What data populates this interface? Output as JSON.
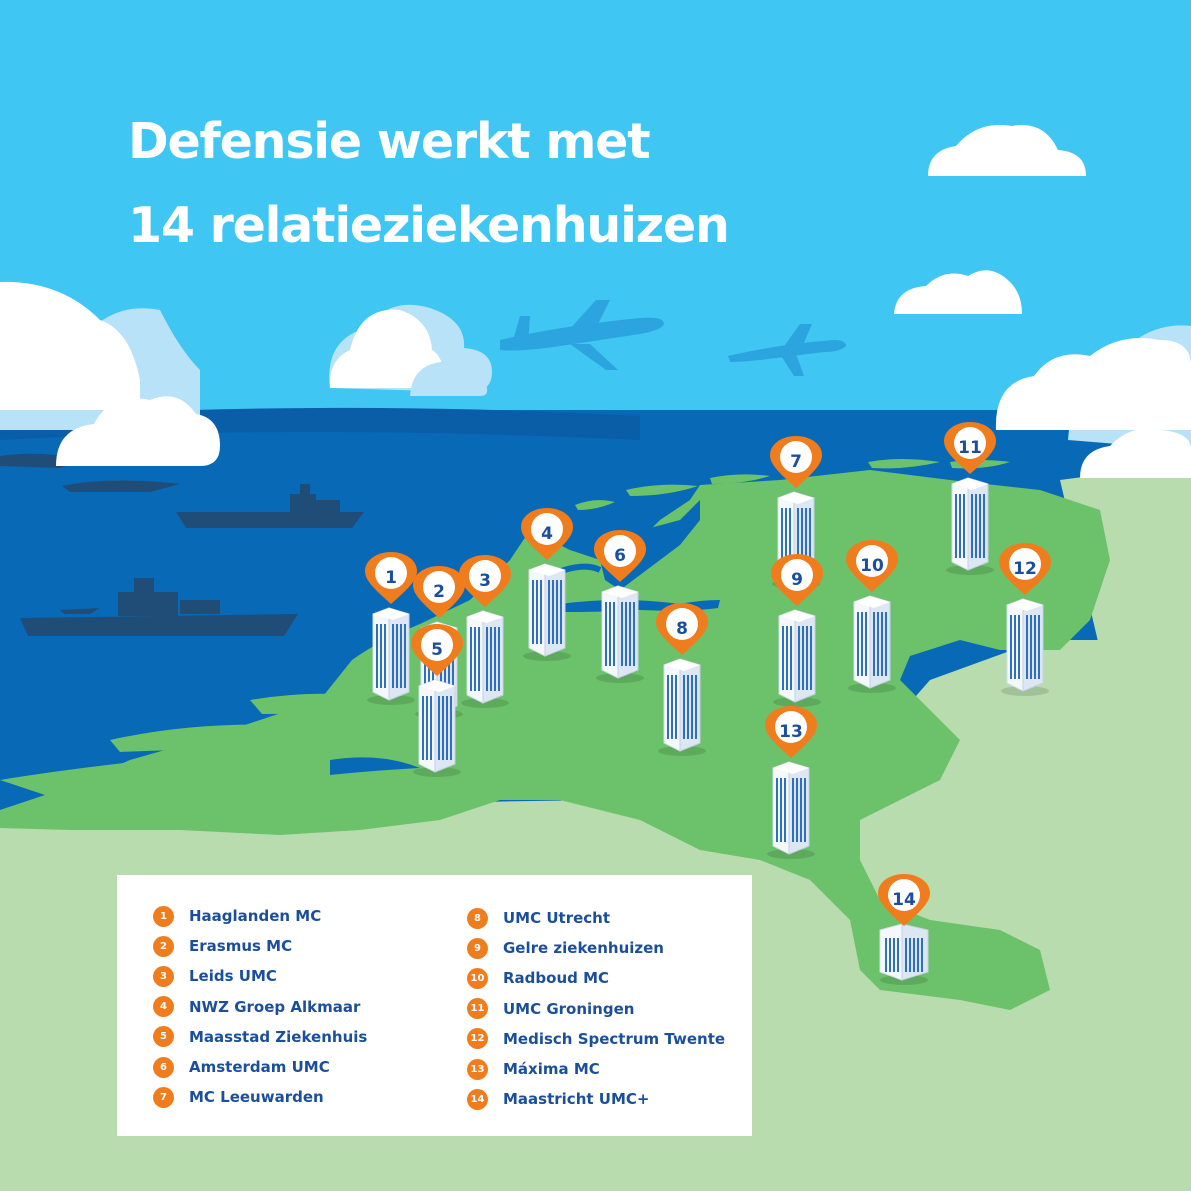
{
  "title": {
    "line1": "Defensie werkt met",
    "line2": "14 relatieziekenhuizen"
  },
  "colors": {
    "sky": "#3fc6f2",
    "sea": "#0869b6",
    "land": "#6cc26a",
    "land_pale": "#b8dcae",
    "pin": "#f07d1d",
    "text_blue": "#1b4f9c"
  },
  "markers": [
    {
      "number": "1"
    },
    {
      "number": "2"
    },
    {
      "number": "3"
    },
    {
      "number": "4"
    },
    {
      "number": "5"
    },
    {
      "number": "6"
    },
    {
      "number": "7"
    },
    {
      "number": "8"
    },
    {
      "number": "9"
    },
    {
      "number": "10"
    },
    {
      "number": "11"
    },
    {
      "number": "12"
    },
    {
      "number": "13"
    },
    {
      "number": "14"
    }
  ],
  "legend": {
    "items": [
      {
        "number": "1",
        "name": "Haaglanden MC"
      },
      {
        "number": "2",
        "name": "Erasmus MC"
      },
      {
        "number": "3",
        "name": "Leids UMC"
      },
      {
        "number": "4",
        "name": "NWZ Groep Alkmaar"
      },
      {
        "number": "5",
        "name": "Maasstad Ziekenhuis"
      },
      {
        "number": "6",
        "name": "Amsterdam UMC"
      },
      {
        "number": "7",
        "name": "MC Leeuwarden"
      },
      {
        "number": "8",
        "name": "UMC Utrecht"
      },
      {
        "number": "9",
        "name": "Gelre ziekenhuizen"
      },
      {
        "number": "10",
        "name": "Radboud MC"
      },
      {
        "number": "11",
        "name": "UMC Groningen"
      },
      {
        "number": "12",
        "name": "Medisch Spectrum Twente"
      },
      {
        "number": "13",
        "name": "Máxima MC"
      },
      {
        "number": "14",
        "name": "Maastricht UMC+"
      }
    ]
  }
}
